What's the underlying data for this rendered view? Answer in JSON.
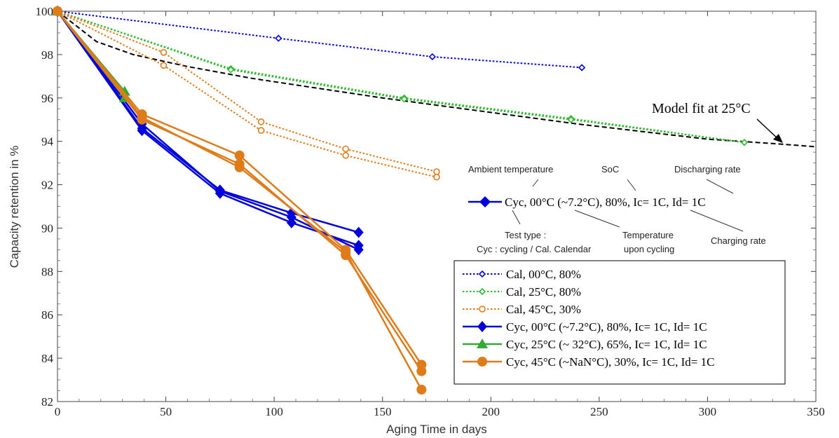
{
  "chart_data": {
    "type": "line",
    "xlabel": "Aging Time in days",
    "ylabel": "Capacity retention in %",
    "xlim": [
      0,
      350
    ],
    "ylim": [
      82,
      100
    ],
    "xticks": [
      0,
      50,
      100,
      150,
      200,
      250,
      300,
      350
    ],
    "yticks": [
      82,
      84,
      86,
      88,
      90,
      92,
      94,
      96,
      98,
      100
    ],
    "grid": false,
    "legend_position": "bottom-right",
    "series": [
      {
        "name": "Cal, 00°C,  80%",
        "color": "#0000dd",
        "line": "dotted",
        "marker": "small-diamond",
        "runs": [
          {
            "x": [
              0,
              102,
              173,
              242
            ],
            "y": [
              100,
              98.75,
              97.9,
              97.4
            ]
          }
        ]
      },
      {
        "name": "Cal, 25°C,  80%",
        "color": "#33bb33",
        "line": "dotted",
        "marker": "small-diamond",
        "runs": [
          {
            "x": [
              0,
              80,
              160,
              237,
              317
            ],
            "y": [
              100,
              97.35,
              96.0,
              95.05,
              93.95
            ]
          },
          {
            "x": [
              0,
              80,
              160,
              237,
              317
            ],
            "y": [
              100,
              97.3,
              95.95,
              95.0,
              93.95
            ]
          }
        ]
      },
      {
        "name": "Cal, 45°C,  30%",
        "color": "#e07b1a",
        "line": "dotted",
        "marker": "open-circle",
        "runs": [
          {
            "x": [
              0,
              49,
              94,
              133,
              175
            ],
            "y": [
              100,
              98.1,
              94.9,
              93.65,
              92.6
            ]
          },
          {
            "x": [
              0,
              49,
              94,
              133,
              175
            ],
            "y": [
              100,
              97.5,
              94.5,
              93.35,
              92.35
            ]
          }
        ]
      },
      {
        "name": "Cyc, 00°C (~7.2°C),  80%, Ic= 1C, Id= 1C",
        "color": "#0000dd",
        "line": "solid",
        "marker": "diamond",
        "runs": [
          {
            "x": [
              0,
              39,
              75,
              108,
              139
            ],
            "y": [
              100,
              94.6,
              91.75,
              90.7,
              89.8
            ]
          },
          {
            "x": [
              0,
              39,
              75,
              108,
              139
            ],
            "y": [
              100,
              94.5,
              91.6,
              90.25,
              89.2
            ]
          },
          {
            "x": [
              0,
              39,
              75,
              108,
              139
            ],
            "y": [
              100,
              94.8,
              91.7,
              90.5,
              89.0
            ]
          }
        ]
      },
      {
        "name": "Cyc, 25°C (~ 32°C),  65%, Ic= 1C, Id= 1C",
        "color": "#33aa33",
        "line": "solid",
        "marker": "triangle",
        "runs": [
          {
            "x": [
              0,
              31
            ],
            "y": [
              100,
              96.3
            ]
          },
          {
            "x": [
              0,
              31
            ],
            "y": [
              100,
              96.0
            ]
          }
        ]
      },
      {
        "name": "Cyc, 45°C (~NaN°C),  30%, Ic= 1C, Id= 1C",
        "color": "#e07b1a",
        "line": "solid",
        "marker": "circle",
        "runs": [
          {
            "x": [
              0,
              39,
              84,
              133,
              168
            ],
            "y": [
              100,
              95.25,
              93.35,
              89.0,
              83.7
            ]
          },
          {
            "x": [
              0,
              39,
              84,
              133,
              168
            ],
            "y": [
              100,
              95.0,
              92.95,
              88.75,
              83.4
            ]
          },
          {
            "x": [
              0,
              39,
              84,
              133,
              168
            ],
            "y": [
              100,
              95.1,
              92.8,
              88.9,
              82.55
            ]
          }
        ]
      }
    ],
    "model_fit": {
      "label": "Model fit at 25°C",
      "color": "#000000",
      "line": "dashed",
      "x": [
        0,
        18,
        35,
        60,
        90,
        120,
        150,
        180,
        210,
        240,
        270,
        300,
        330,
        350
      ],
      "y": [
        100,
        98.6,
        98.0,
        97.45,
        96.9,
        96.45,
        96.0,
        95.6,
        95.2,
        94.8,
        94.45,
        94.1,
        93.9,
        93.75
      ]
    },
    "example_annotation": {
      "text": "Cyc, 00°C (~7.2°C),  80%, Ic= 1C, Id= 1C",
      "labels": {
        "ambient": "Ambient temperature",
        "soc": "SoC",
        "discharge": "Discharging rate",
        "test_type_1": "Test type :",
        "test_type_2": "Cyc : cycling / Cal. Calendar",
        "temp_cycling_1": "Temperature",
        "temp_cycling_2": "upon cycling",
        "charge": "Charging rate"
      }
    }
  }
}
